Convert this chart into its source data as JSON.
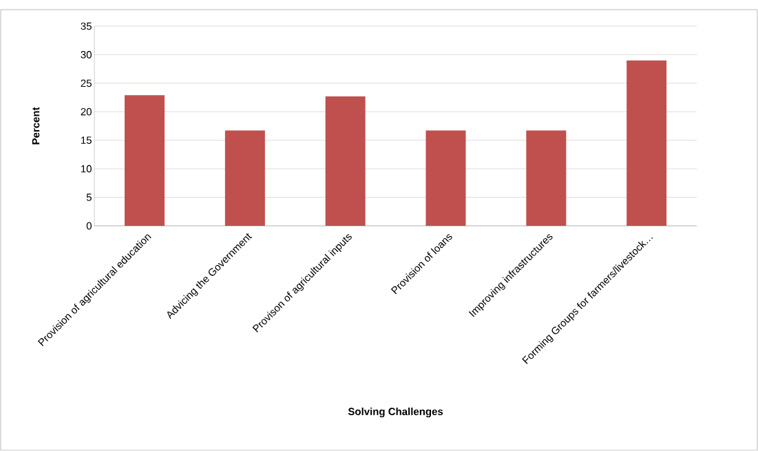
{
  "chart_data": {
    "type": "bar",
    "xlabel": "Solving Challenges",
    "ylabel": "Percent",
    "categories": [
      "Provision of agricultural education",
      "Advicing the Government",
      "Provison of agricultural inputs",
      "Provision of loans",
      "Improving infrastructures",
      "Forming Groups for farmers/livestock…"
    ],
    "values": [
      22.9,
      16.7,
      22.7,
      16.7,
      16.7,
      29.0
    ],
    "color": "#c0504d",
    "ylim": [
      0,
      35
    ],
    "yticks": [
      0,
      5,
      10,
      15,
      20,
      25,
      30,
      35
    ],
    "grid": "y"
  }
}
